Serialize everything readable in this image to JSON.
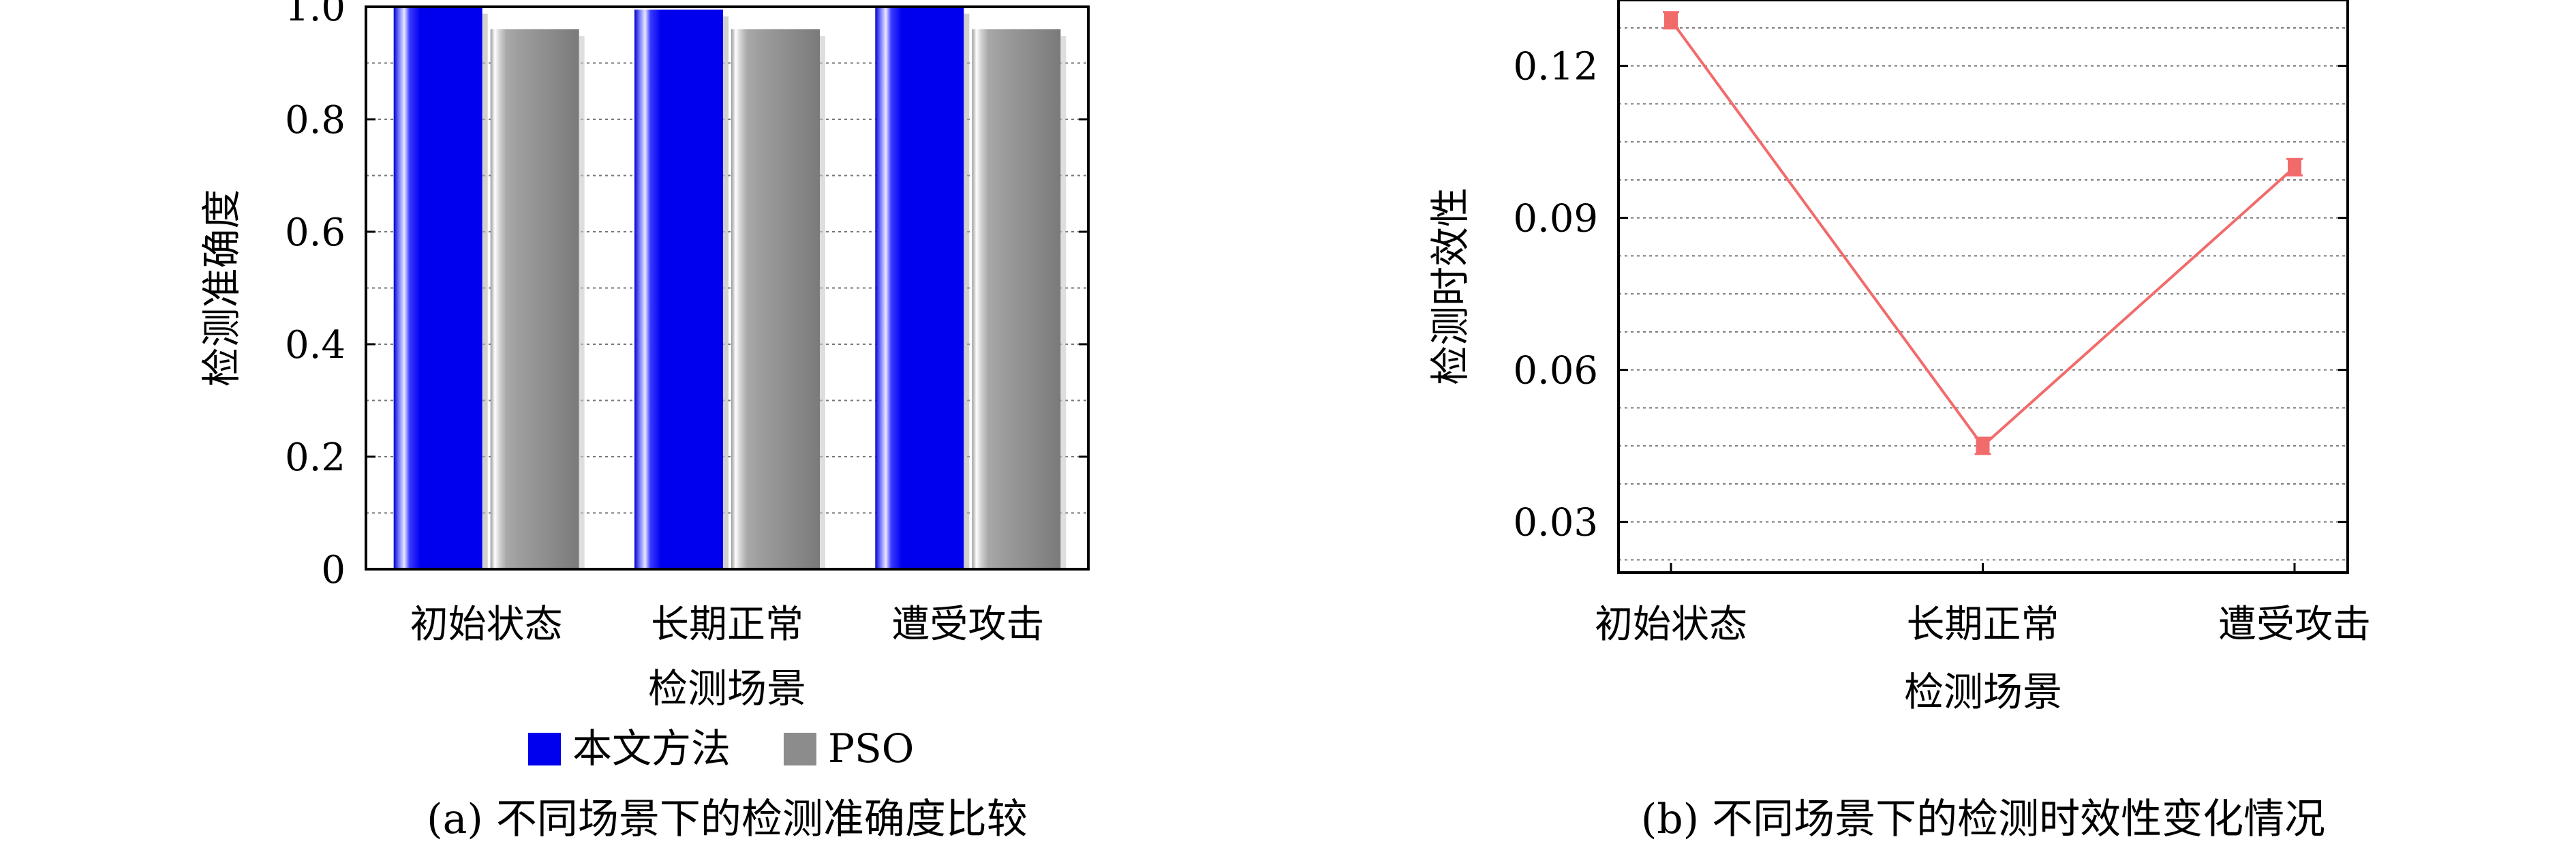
{
  "chart_data": [
    {
      "type": "bar",
      "caption": "(a) 不同场景下的检测准确度比较",
      "xlabel": "检测场景",
      "ylabel": "检测准确度",
      "categories": [
        "初始状态",
        "长期正常",
        "遭受攻击"
      ],
      "series": [
        {
          "name": "本文方法",
          "values": [
            1.0,
            0.995,
            1.0
          ],
          "color": "#0000ee"
        },
        {
          "name": "PSO",
          "values": [
            0.96,
            0.96,
            0.96
          ],
          "color": "#8c8c8c"
        }
      ],
      "ylim": [
        0,
        1.0
      ],
      "yticks": [
        0,
        0.2,
        0.4,
        0.6,
        0.8,
        1.0
      ],
      "ytick_labels": [
        "0",
        "0.2",
        "0.4",
        "0.6",
        "0.8",
        "1.0"
      ],
      "grid": true,
      "legend": "bottom"
    },
    {
      "type": "line",
      "caption": "(b) 不同场景下的检测时效性变化情况",
      "xlabel": "检测场景",
      "ylabel": "检测时效性",
      "categories": [
        "初始状态",
        "长期正常",
        "遭受攻击"
      ],
      "values": [
        0.129,
        0.045,
        0.1
      ],
      "color": "#f26b6b",
      "ylim": [
        0.02,
        0.133
      ],
      "yticks": [
        0.03,
        0.06,
        0.09,
        0.12
      ],
      "ytick_labels": [
        "0.03",
        "0.06",
        "0.09",
        "0.12"
      ],
      "grid": true
    }
  ]
}
